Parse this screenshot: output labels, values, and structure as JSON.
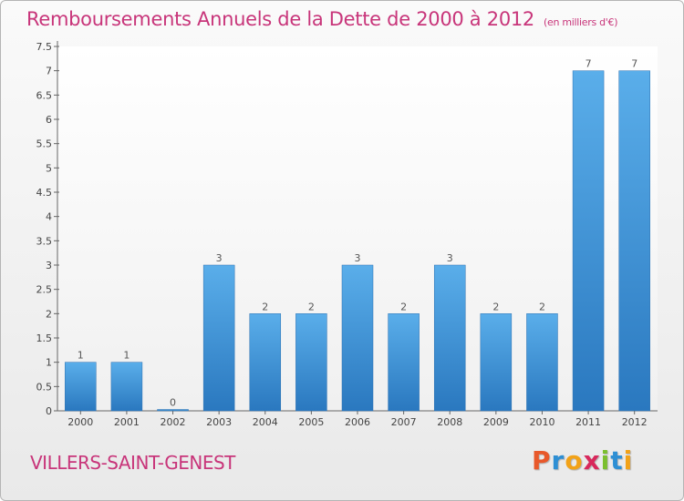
{
  "header": {
    "title": "Remboursements Annuels de la Dette de 2000 à 2012",
    "subtitle": "(en milliers d'€)"
  },
  "footer": {
    "commune": "VILLERS-SAINT-GENEST",
    "logo": [
      "P",
      "r",
      "o",
      "x",
      "i",
      "t",
      "i"
    ],
    "logo_colors": [
      "#e8582a",
      "#2e8fd4",
      "#f2a218",
      "#d8285c",
      "#7bbf2e",
      "#2e8fd4",
      "#f2a218"
    ]
  },
  "chart_data": {
    "type": "bar",
    "categories": [
      "2000",
      "2001",
      "2002",
      "2003",
      "2004",
      "2005",
      "2006",
      "2007",
      "2008",
      "2009",
      "2010",
      "2011",
      "2012"
    ],
    "values": [
      1,
      1,
      0,
      3,
      2,
      2,
      3,
      2,
      3,
      2,
      2,
      7,
      7
    ],
    "value_labels": [
      "1",
      "1",
      "0",
      "3",
      "2",
      "2",
      "3",
      "2",
      "3",
      "2",
      "2",
      "7",
      "7"
    ],
    "yticks": [
      0,
      0.5,
      1,
      1.5,
      2,
      2.5,
      3,
      3.5,
      4,
      4.5,
      5,
      5.5,
      6,
      6.5,
      7,
      7.5
    ],
    "ytick_labels": [
      "0",
      "0.5",
      "1",
      "1.5",
      "2",
      "2.5",
      "3",
      "3.5",
      "4",
      "4.5",
      "5",
      "5.5",
      "6",
      "6.5",
      "7",
      "7.5"
    ],
    "ylim": [
      0,
      7.5
    ],
    "grid": false,
    "bar_color": "#3a8fd6"
  }
}
